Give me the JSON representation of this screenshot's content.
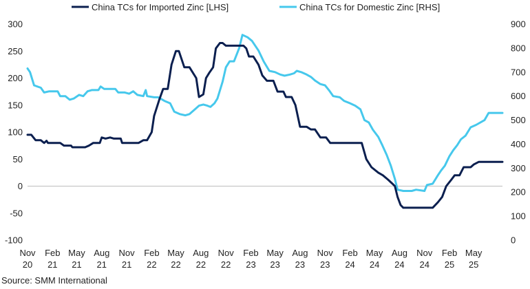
{
  "source": "Source: SMM International",
  "chart_data": {
    "type": "line",
    "legend_position": "top",
    "grid": false,
    "x_ticks": [
      {
        "month": "Nov",
        "year": "20",
        "date": "2020-11"
      },
      {
        "month": "Feb",
        "year": "21",
        "date": "2021-02"
      },
      {
        "month": "May",
        "year": "21",
        "date": "2021-05"
      },
      {
        "month": "Aug",
        "year": "21",
        "date": "2021-08"
      },
      {
        "month": "Nov",
        "year": "21",
        "date": "2021-11"
      },
      {
        "month": "Feb",
        "year": "22",
        "date": "2022-02"
      },
      {
        "month": "May",
        "year": "22",
        "date": "2022-05"
      },
      {
        "month": "Aug",
        "year": "22",
        "date": "2022-08"
      },
      {
        "month": "Nov",
        "year": "22",
        "date": "2022-11"
      },
      {
        "month": "Feb",
        "year": "23",
        "date": "2023-02"
      },
      {
        "month": "May",
        "year": "23",
        "date": "2023-05"
      },
      {
        "month": "Aug",
        "year": "23",
        "date": "2023-08"
      },
      {
        "month": "Nov",
        "year": "23",
        "date": "2023-11"
      },
      {
        "month": "Feb",
        "year": "24",
        "date": "2024-02"
      },
      {
        "month": "May",
        "year": "24",
        "date": "2024-05"
      },
      {
        "month": "Aug",
        "year": "24",
        "date": "2024-08"
      },
      {
        "month": "Nov",
        "year": "24",
        "date": "2024-11"
      },
      {
        "month": "Feb",
        "year": "25",
        "date": "2025-02"
      },
      {
        "month": "May",
        "year": "25",
        "date": "2025-05"
      }
    ],
    "left_axis": {
      "min": -100,
      "max": 300,
      "step": 50,
      "ticks": [
        "300",
        "250",
        "200",
        "150",
        "100",
        "50",
        "0",
        "-50",
        "-100"
      ]
    },
    "right_axis": {
      "min": 0,
      "max": 900,
      "step": 100,
      "ticks": [
        "900",
        "800",
        "700",
        "600",
        "500",
        "400",
        "300",
        "200",
        "100",
        "0"
      ]
    },
    "series": [
      {
        "name": "China TCs for Imported Zinc [LHS]",
        "axis": "left",
        "color": "#0b1f4f",
        "points": [
          [
            "2020-11-01",
            95
          ],
          [
            "2020-11-15",
            95
          ],
          [
            "2020-12-01",
            85
          ],
          [
            "2020-12-20",
            85
          ],
          [
            "2021-01-01",
            80
          ],
          [
            "2021-01-10",
            84
          ],
          [
            "2021-01-15",
            80
          ],
          [
            "2021-03-01",
            80
          ],
          [
            "2021-03-15",
            75
          ],
          [
            "2021-04-10",
            75
          ],
          [
            "2021-04-15",
            72
          ],
          [
            "2021-06-01",
            72
          ],
          [
            "2021-06-15",
            75
          ],
          [
            "2021-07-01",
            80
          ],
          [
            "2021-07-25",
            80
          ],
          [
            "2021-08-01",
            90
          ],
          [
            "2021-08-15",
            88
          ],
          [
            "2021-09-01",
            90
          ],
          [
            "2021-09-15",
            88
          ],
          [
            "2021-10-10",
            88
          ],
          [
            "2021-10-15",
            80
          ],
          [
            "2021-12-15",
            80
          ],
          [
            "2022-01-01",
            85
          ],
          [
            "2022-01-15",
            85
          ],
          [
            "2022-02-01",
            100
          ],
          [
            "2022-02-10",
            130
          ],
          [
            "2022-03-01",
            160
          ],
          [
            "2022-03-15",
            180
          ],
          [
            "2022-04-01",
            180
          ],
          [
            "2022-04-15",
            225
          ],
          [
            "2022-05-01",
            250
          ],
          [
            "2022-05-12",
            250
          ],
          [
            "2022-06-01",
            220
          ],
          [
            "2022-06-20",
            220
          ],
          [
            "2022-07-15",
            200
          ],
          [
            "2022-07-25",
            165
          ],
          [
            "2022-08-10",
            170
          ],
          [
            "2022-08-20",
            200
          ],
          [
            "2022-09-01",
            210
          ],
          [
            "2022-09-15",
            220
          ],
          [
            "2022-09-25",
            255
          ],
          [
            "2022-10-10",
            265
          ],
          [
            "2022-10-20",
            265
          ],
          [
            "2022-11-01",
            260
          ],
          [
            "2023-01-05",
            260
          ],
          [
            "2023-01-15",
            255
          ],
          [
            "2023-01-25",
            240
          ],
          [
            "2023-02-10",
            240
          ],
          [
            "2023-03-01",
            225
          ],
          [
            "2023-03-15",
            205
          ],
          [
            "2023-04-01",
            195
          ],
          [
            "2023-04-25",
            195
          ],
          [
            "2023-05-10",
            175
          ],
          [
            "2023-06-01",
            175
          ],
          [
            "2023-06-10",
            165
          ],
          [
            "2023-07-01",
            165
          ],
          [
            "2023-07-15",
            150
          ],
          [
            "2023-08-01",
            110
          ],
          [
            "2023-08-25",
            110
          ],
          [
            "2023-09-10",
            105
          ],
          [
            "2023-09-25",
            105
          ],
          [
            "2023-10-15",
            90
          ],
          [
            "2023-11-05",
            90
          ],
          [
            "2023-11-20",
            80
          ],
          [
            "2024-03-15",
            80
          ],
          [
            "2024-04-01",
            50
          ],
          [
            "2024-04-20",
            35
          ],
          [
            "2024-05-15",
            25
          ],
          [
            "2024-06-01",
            20
          ],
          [
            "2024-06-20",
            12
          ],
          [
            "2024-07-05",
            5
          ],
          [
            "2024-07-15",
            0
          ],
          [
            "2024-07-25",
            -20
          ],
          [
            "2024-08-05",
            -35
          ],
          [
            "2024-08-15",
            -40
          ],
          [
            "2024-12-01",
            -40
          ],
          [
            "2024-12-20",
            -30
          ],
          [
            "2025-01-05",
            -20
          ],
          [
            "2025-01-20",
            0
          ],
          [
            "2025-02-05",
            10
          ],
          [
            "2025-02-20",
            20
          ],
          [
            "2025-03-10",
            20
          ],
          [
            "2025-03-25",
            35
          ],
          [
            "2025-04-20",
            35
          ],
          [
            "2025-05-01",
            40
          ],
          [
            "2025-05-20",
            45
          ],
          [
            "2025-08-15",
            45
          ]
        ]
      },
      {
        "name": "China TCs for Domestic Zinc [RHS]",
        "axis": "right",
        "color": "#46c8ec",
        "points": [
          [
            "2020-11-01",
            715
          ],
          [
            "2020-11-10",
            700
          ],
          [
            "2020-11-25",
            645
          ],
          [
            "2020-12-20",
            635
          ],
          [
            "2021-01-01",
            615
          ],
          [
            "2021-01-20",
            620
          ],
          [
            "2021-02-20",
            620
          ],
          [
            "2021-03-01",
            600
          ],
          [
            "2021-03-20",
            600
          ],
          [
            "2021-04-05",
            585
          ],
          [
            "2021-04-20",
            590
          ],
          [
            "2021-05-10",
            605
          ],
          [
            "2021-05-25",
            600
          ],
          [
            "2021-06-10",
            620
          ],
          [
            "2021-06-25",
            625
          ],
          [
            "2021-07-20",
            625
          ],
          [
            "2021-07-28",
            640
          ],
          [
            "2021-08-10",
            630
          ],
          [
            "2021-09-20",
            630
          ],
          [
            "2021-10-01",
            615
          ],
          [
            "2021-10-25",
            615
          ],
          [
            "2021-11-10",
            610
          ],
          [
            "2021-11-25",
            620
          ],
          [
            "2021-12-10",
            605
          ],
          [
            "2022-01-01",
            600
          ],
          [
            "2022-01-10",
            625
          ],
          [
            "2022-01-15",
            600
          ],
          [
            "2022-02-10",
            595
          ],
          [
            "2022-02-25",
            595
          ],
          [
            "2022-03-20",
            580
          ],
          [
            "2022-04-10",
            570
          ],
          [
            "2022-04-25",
            535
          ],
          [
            "2022-05-15",
            525
          ],
          [
            "2022-06-05",
            520
          ],
          [
            "2022-06-20",
            525
          ],
          [
            "2022-07-10",
            545
          ],
          [
            "2022-07-25",
            560
          ],
          [
            "2022-08-10",
            565
          ],
          [
            "2022-08-25",
            560
          ],
          [
            "2022-09-05",
            555
          ],
          [
            "2022-09-20",
            570
          ],
          [
            "2022-10-01",
            590
          ],
          [
            "2022-10-20",
            660
          ],
          [
            "2022-11-01",
            720
          ],
          [
            "2022-11-15",
            745
          ],
          [
            "2022-12-01",
            745
          ],
          [
            "2022-12-20",
            800
          ],
          [
            "2023-01-01",
            855
          ],
          [
            "2023-01-20",
            845
          ],
          [
            "2023-02-05",
            830
          ],
          [
            "2023-03-01",
            790
          ],
          [
            "2023-03-20",
            745
          ],
          [
            "2023-04-10",
            705
          ],
          [
            "2023-05-01",
            700
          ],
          [
            "2023-05-20",
            690
          ],
          [
            "2023-06-05",
            685
          ],
          [
            "2023-06-25",
            690
          ],
          [
            "2023-07-10",
            695
          ],
          [
            "2023-07-20",
            705
          ],
          [
            "2023-08-05",
            700
          ],
          [
            "2023-08-25",
            690
          ],
          [
            "2023-09-10",
            680
          ],
          [
            "2023-09-25",
            665
          ],
          [
            "2023-10-15",
            650
          ],
          [
            "2023-11-01",
            645
          ],
          [
            "2023-11-15",
            625
          ],
          [
            "2023-12-01",
            600
          ],
          [
            "2023-12-25",
            595
          ],
          [
            "2024-01-10",
            580
          ],
          [
            "2024-02-01",
            570
          ],
          [
            "2024-02-20",
            560
          ],
          [
            "2024-03-10",
            545
          ],
          [
            "2024-03-25",
            500
          ],
          [
            "2024-04-10",
            490
          ],
          [
            "2024-04-25",
            460
          ],
          [
            "2024-05-15",
            430
          ],
          [
            "2024-05-30",
            395
          ],
          [
            "2024-06-15",
            355
          ],
          [
            "2024-06-30",
            310
          ],
          [
            "2024-07-15",
            255
          ],
          [
            "2024-07-25",
            210
          ],
          [
            "2024-08-15",
            205
          ],
          [
            "2024-09-15",
            205
          ],
          [
            "2024-10-01",
            210
          ],
          [
            "2024-11-01",
            205
          ],
          [
            "2024-11-10",
            230
          ],
          [
            "2024-12-01",
            235
          ],
          [
            "2024-12-20",
            270
          ],
          [
            "2025-01-01",
            290
          ],
          [
            "2025-01-15",
            310
          ],
          [
            "2025-02-01",
            350
          ],
          [
            "2025-02-15",
            375
          ],
          [
            "2025-03-01",
            395
          ],
          [
            "2025-03-15",
            420
          ],
          [
            "2025-04-01",
            435
          ],
          [
            "2025-04-20",
            470
          ],
          [
            "2025-05-10",
            480
          ],
          [
            "2025-06-10",
            500
          ],
          [
            "2025-06-25",
            530
          ],
          [
            "2025-08-15",
            530
          ]
        ]
      }
    ]
  }
}
